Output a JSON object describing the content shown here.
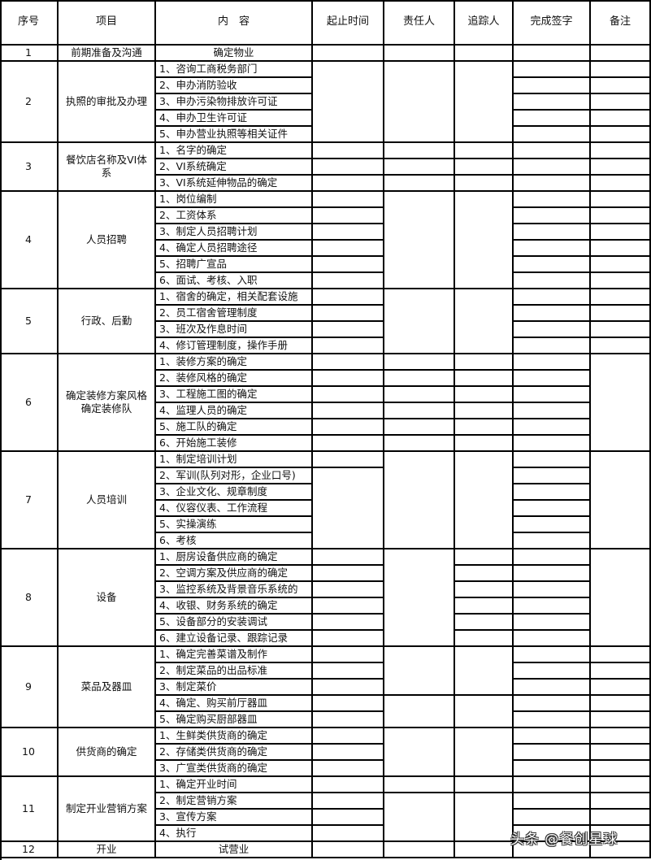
{
  "header": [
    "序号",
    "项目",
    "内　容",
    "起止时间",
    "责任人",
    "追踪人",
    "完成签字",
    "备注"
  ],
  "groups": [
    {
      "no": "1",
      "project": "前期准备及沟通",
      "items": [
        "确定物业"
      ]
    },
    {
      "no": "2",
      "project": "执照的审批及办理",
      "items": [
        "1、咨询工商税务部门",
        "2、申办消防验收",
        "3、申办污染物排放许可证",
        "4、申办卫生许可证",
        "5、申办营业执照等相关证件"
      ]
    },
    {
      "no": "3",
      "project": "餐饮店名称及VI体系",
      "items": [
        "1、名字的确定",
        "2、VI系统确定",
        "3、VI系统延伸物品的确定"
      ]
    },
    {
      "no": "4",
      "project": "人员招聘",
      "items": [
        "1、岗位编制",
        "2、工资体系",
        "3、制定人员招聘计划",
        "4、确定人员招聘途径",
        "5、招聘广宣品",
        "6、面试、考核、入职"
      ]
    },
    {
      "no": "5",
      "project": "行政、后勤",
      "items": [
        "1、宿舍的确定，相关配套设施",
        "2、员工宿舍管理制度",
        "3、班次及作息时间",
        "4、修订管理制度，操作手册"
      ]
    },
    {
      "no": "6",
      "project": "确定装修方案风格确定装修队",
      "items": [
        "1、装修方案的确定",
        "2、装修风格的确定",
        "3、工程施工图的确定",
        "4、监理人员的确定",
        "5、施工队的确定",
        "6、开始施工装修"
      ]
    },
    {
      "no": "7",
      "project": "人员培训",
      "items": [
        "1、制定培训计划",
        "2、军训(队列对形，企业口号)",
        "3、企业文化、规章制度",
        "4、仪容仪表、工作流程",
        "5、实操演练",
        "6、考核"
      ]
    },
    {
      "no": "8",
      "project": "设备",
      "items": [
        "1、厨房设备供应商的确定",
        "2、空调方案及供应商的确定",
        "3、监控系统及背景音乐系统的",
        "4、收银、财务系统的确定",
        "5、设备部分的安装调试",
        "6、建立设备记录、跟踪记录"
      ]
    },
    {
      "no": "9",
      "project": "菜品及器皿",
      "items": [
        "1、确定完善菜谱及制作",
        "2、制定菜品的出品标准",
        "3、制定菜价",
        "4、确定、购买前厅器皿",
        "5、确定购买厨部器皿"
      ]
    },
    {
      "no": "10",
      "project": "供货商的确定",
      "items": [
        "1、生鲜类供货商的确定",
        "2、存储类供货商的确定",
        "3、广宣类供货商的确定"
      ]
    },
    {
      "no": "11",
      "project": "制定开业营销方案",
      "items": [
        "1、确定开业时间",
        "2、制定营销方案",
        "3、宣传方案",
        "4、执行"
      ]
    },
    {
      "no": "12",
      "project": "开业",
      "items": [
        "试营业"
      ]
    }
  ],
  "watermark": "头条 @餐创星球"
}
